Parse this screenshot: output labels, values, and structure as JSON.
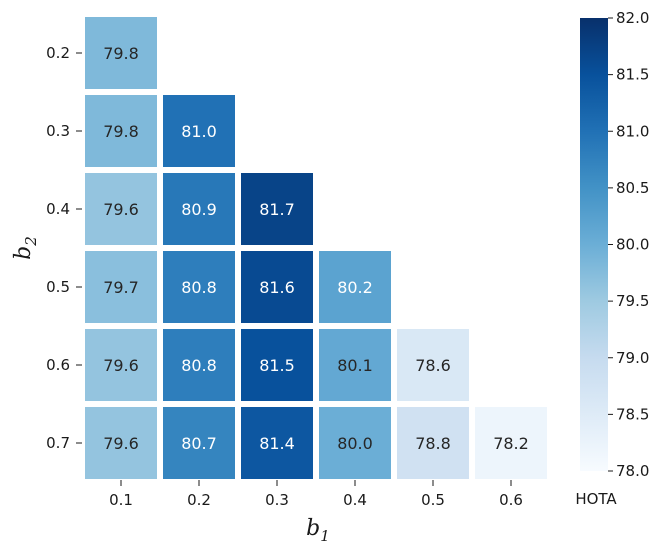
{
  "chart_data": {
    "type": "heatmap",
    "xlabel": "b",
    "xlabel_sub": "1",
    "ylabel": "b",
    "ylabel_sub": "2",
    "x_categories": [
      "0.1",
      "0.2",
      "0.3",
      "0.4",
      "0.5",
      "0.6"
    ],
    "y_categories": [
      "0.2",
      "0.3",
      "0.4",
      "0.5",
      "0.6",
      "0.7"
    ],
    "values": [
      [
        79.8,
        null,
        null,
        null,
        null,
        null
      ],
      [
        79.8,
        81.0,
        null,
        null,
        null,
        null
      ],
      [
        79.6,
        80.9,
        81.7,
        null,
        null,
        null
      ],
      [
        79.7,
        80.8,
        81.6,
        80.2,
        null,
        null
      ],
      [
        79.6,
        80.8,
        81.5,
        80.1,
        78.6,
        null
      ],
      [
        79.6,
        80.7,
        81.4,
        80.0,
        78.8,
        78.2
      ]
    ],
    "colorbar": {
      "label": "HOTA",
      "min": 78.0,
      "max": 82.0,
      "ticks": [
        "78.0",
        "78.5",
        "79.0",
        "79.5",
        "80.0",
        "80.5",
        "81.0",
        "81.5",
        "82.0"
      ],
      "colormap": "Blues"
    }
  }
}
